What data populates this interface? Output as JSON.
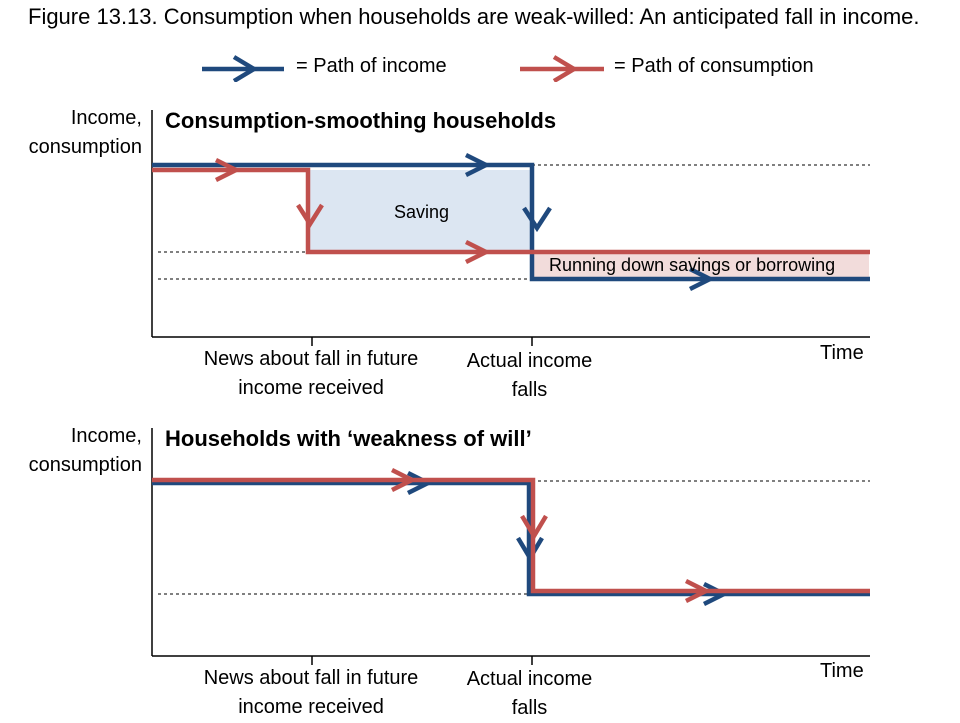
{
  "figure": {
    "title": "Figure 13.13. Consumption when households are weak-willed: An anticipated fall in income."
  },
  "legend": {
    "income_label": "= Path of income",
    "consumption_label": "= Path of consumption",
    "income_color": "#1f497d",
    "consumption_color": "#c0504d"
  },
  "panels": [
    {
      "title": "Consumption-smoothing households",
      "y_axis_label_line1": "Income,",
      "y_axis_label_line2": "consumption",
      "x_axis_label": "Time",
      "tick_news_line1": "News about fall in future",
      "tick_news_line2": "income received",
      "tick_actual_line1": "Actual income",
      "tick_actual_line2": "falls",
      "saving_label": "Saving",
      "dissaving_label": "Running down savings or borrowing",
      "saving_color": "#dce6f2",
      "dissaving_color": "#f2dcdb"
    },
    {
      "title": "Households with ‘weakness of will’",
      "y_axis_label_line1": "Income,",
      "y_axis_label_line2": "consumption",
      "x_axis_label": "Time",
      "tick_news_line1": "News about fall in future",
      "tick_news_line2": "income received",
      "tick_actual_line1": "Actual income",
      "tick_actual_line2": "falls"
    }
  ]
}
